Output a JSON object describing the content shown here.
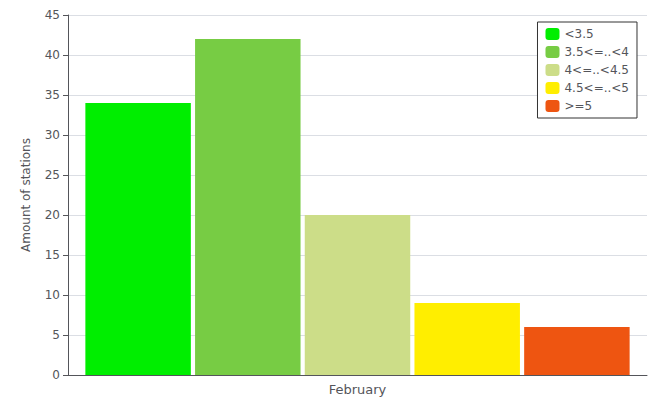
{
  "chart_data": {
    "type": "bar",
    "categories": [
      "February"
    ],
    "series": [
      {
        "name": "<3.5",
        "color": "#00ee00",
        "values": [
          34
        ]
      },
      {
        "name": "3.5<=..<4",
        "color": "#77cc44",
        "values": [
          42
        ]
      },
      {
        "name": "4<=..<4.5",
        "color": "#ccdd88",
        "values": [
          20
        ]
      },
      {
        "name": "4.5<=..<5",
        "color": "#ffee00",
        "values": [
          9
        ]
      },
      {
        "name": ">=5",
        "color": "#ee5511",
        "values": [
          6
        ]
      }
    ],
    "ylabel": "Amount of stations",
    "ylim": [
      0,
      45
    ],
    "yticks": [
      0,
      5,
      10,
      15,
      20,
      25,
      30,
      35,
      40,
      45
    ],
    "grid": true,
    "legend": "upper right"
  }
}
